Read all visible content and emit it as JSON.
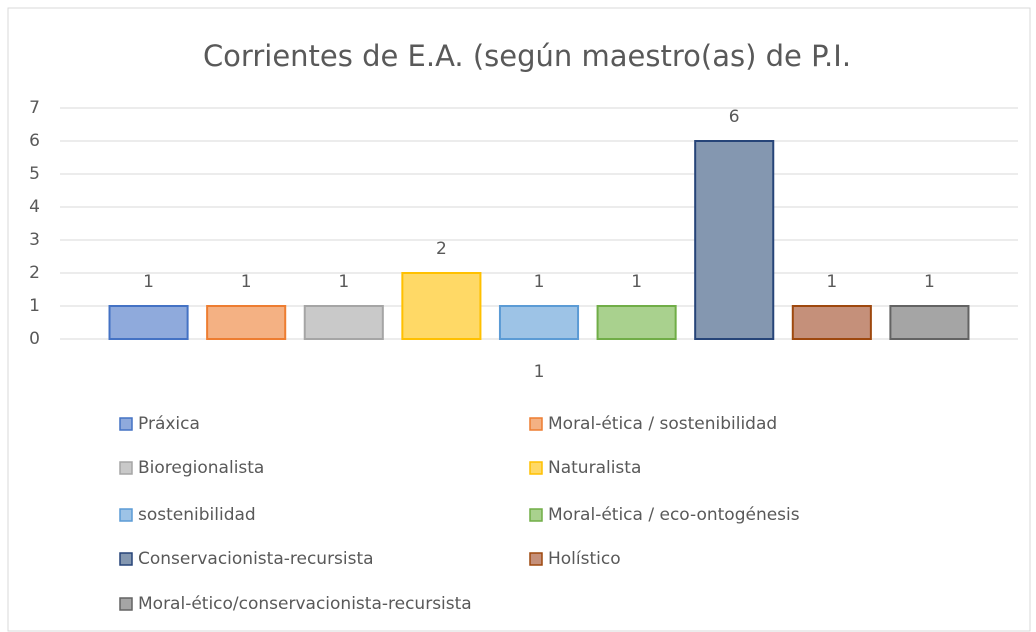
{
  "chart_data": {
    "type": "bar",
    "title": "Corrientes  de E.A. (según maestro(as)  de P.I.",
    "categories": [
      "1"
    ],
    "ylim": [
      0,
      7
    ],
    "yticks": [
      0,
      1,
      2,
      3,
      4,
      5,
      6,
      7
    ],
    "grid": true,
    "series": [
      {
        "name": "Práxica",
        "color": "#8faadc",
        "edgecolor": "#4472c4",
        "values": [
          1
        ]
      },
      {
        "name": "Moral-ética / sostenibilidad",
        "color": "#f4b183",
        "edgecolor": "#ed7d31",
        "values": [
          1
        ]
      },
      {
        "name": "Bioregionalista",
        "color": "#c9c9c9",
        "edgecolor": "#a5a5a5",
        "values": [
          1
        ]
      },
      {
        "name": "Naturalista",
        "color": "#ffd966",
        "edgecolor": "#ffc000",
        "values": [
          2
        ]
      },
      {
        "name": "sostenibilidad",
        "color": "#9dc3e6",
        "edgecolor": "#5b9bd5",
        "values": [
          1
        ]
      },
      {
        "name": "Moral-ética / eco-ontogénesis",
        "color": "#a9d18e",
        "edgecolor": "#70ad47",
        "values": [
          1
        ]
      },
      {
        "name": "Conservacionista-recursista",
        "color": "#8497b0",
        "edgecolor": "#264478",
        "values": [
          6
        ]
      },
      {
        "name": "Holístico",
        "color": "#c5907a",
        "edgecolor": "#9e480e",
        "values": [
          1
        ]
      },
      {
        "name": "Moral-ético/conservacionista-recursista",
        "color": "#a5a5a5",
        "edgecolor": "#636363",
        "values": [
          1
        ]
      }
    ]
  }
}
